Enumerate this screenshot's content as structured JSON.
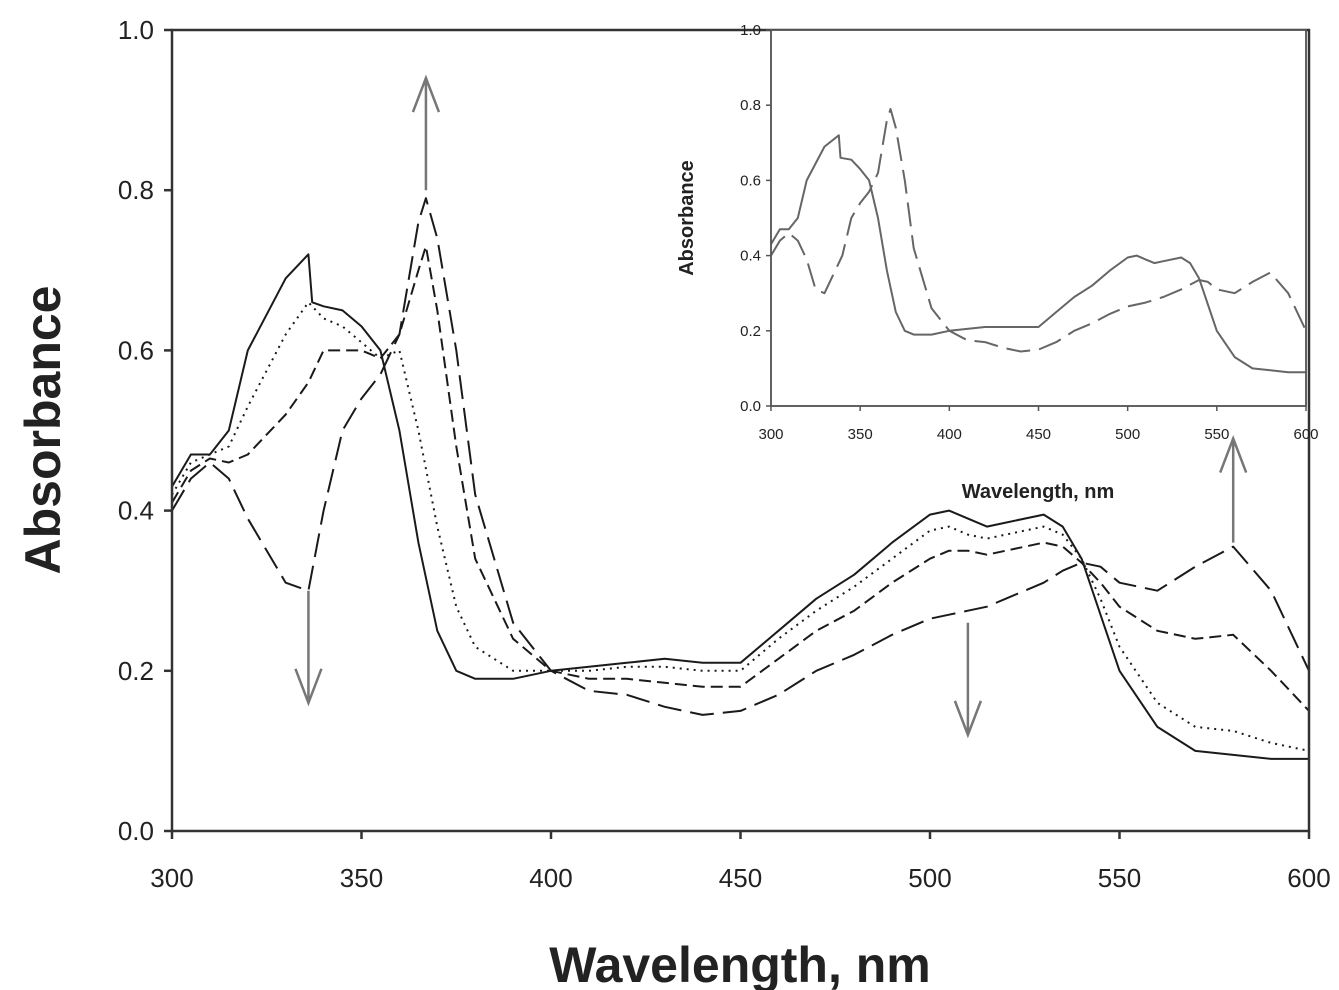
{
  "chart_data": [
    {
      "type": "line",
      "title": "",
      "xlabel": "Wavelength, nm",
      "ylabel": "Absorbance",
      "xlim": [
        300,
        600
      ],
      "ylim": [
        0.0,
        1.0
      ],
      "xticks": [
        "300",
        "350",
        "400",
        "450",
        "500",
        "550",
        "600"
      ],
      "yticks": [
        "0.0",
        "0.2",
        "0.4",
        "0.6",
        "0.8",
        "1.0"
      ],
      "grid": false,
      "legend": "none",
      "annotations": [
        {
          "type": "arrow",
          "direction": "up",
          "x": 367,
          "y_from": 0.8,
          "y_to": 0.94
        },
        {
          "type": "arrow",
          "direction": "down",
          "x": 336,
          "y_from": 0.3,
          "y_to": 0.16
        },
        {
          "type": "arrow",
          "direction": "down",
          "x": 510,
          "y_from": 0.26,
          "y_to": 0.12
        },
        {
          "type": "arrow",
          "direction": "up",
          "x": 580,
          "y_from": 0.36,
          "y_to": 0.49
        }
      ],
      "series": [
        {
          "style": "solid",
          "points": [
            [
              300,
              0.43
            ],
            [
              305,
              0.47
            ],
            [
              310,
              0.47
            ],
            [
              315,
              0.5
            ],
            [
              320,
              0.6
            ],
            [
              330,
              0.69
            ],
            [
              336,
              0.72
            ],
            [
              337,
              0.66
            ],
            [
              340,
              0.655
            ],
            [
              345,
              0.65
            ],
            [
              350,
              0.63
            ],
            [
              355,
              0.6
            ],
            [
              360,
              0.5
            ],
            [
              365,
              0.36
            ],
            [
              370,
              0.25
            ],
            [
              375,
              0.2
            ],
            [
              380,
              0.19
            ],
            [
              390,
              0.19
            ],
            [
              400,
              0.2
            ],
            [
              410,
              0.205
            ],
            [
              420,
              0.21
            ],
            [
              430,
              0.215
            ],
            [
              440,
              0.21
            ],
            [
              450,
              0.21
            ],
            [
              460,
              0.25
            ],
            [
              470,
              0.29
            ],
            [
              480,
              0.32
            ],
            [
              490,
              0.36
            ],
            [
              500,
              0.395
            ],
            [
              505,
              0.4
            ],
            [
              510,
              0.39
            ],
            [
              515,
              0.38
            ],
            [
              520,
              0.385
            ],
            [
              530,
              0.395
            ],
            [
              535,
              0.38
            ],
            [
              540,
              0.34
            ],
            [
              545,
              0.27
            ],
            [
              550,
              0.2
            ],
            [
              560,
              0.13
            ],
            [
              570,
              0.1
            ],
            [
              580,
              0.095
            ],
            [
              590,
              0.09
            ],
            [
              600,
              0.09
            ]
          ]
        },
        {
          "style": "dotted",
          "points": [
            [
              300,
              0.42
            ],
            [
              305,
              0.46
            ],
            [
              310,
              0.47
            ],
            [
              315,
              0.48
            ],
            [
              320,
              0.53
            ],
            [
              330,
              0.62
            ],
            [
              336,
              0.66
            ],
            [
              340,
              0.64
            ],
            [
              345,
              0.63
            ],
            [
              350,
              0.61
            ],
            [
              355,
              0.59
            ],
            [
              360,
              0.6
            ],
            [
              365,
              0.5
            ],
            [
              370,
              0.38
            ],
            [
              375,
              0.28
            ],
            [
              380,
              0.23
            ],
            [
              390,
              0.2
            ],
            [
              400,
              0.2
            ],
            [
              410,
              0.2
            ],
            [
              420,
              0.205
            ],
            [
              430,
              0.205
            ],
            [
              440,
              0.2
            ],
            [
              450,
              0.2
            ],
            [
              460,
              0.24
            ],
            [
              470,
              0.275
            ],
            [
              480,
              0.305
            ],
            [
              490,
              0.34
            ],
            [
              500,
              0.375
            ],
            [
              505,
              0.38
            ],
            [
              510,
              0.37
            ],
            [
              515,
              0.365
            ],
            [
              520,
              0.37
            ],
            [
              530,
              0.38
            ],
            [
              535,
              0.37
            ],
            [
              540,
              0.34
            ],
            [
              545,
              0.29
            ],
            [
              550,
              0.23
            ],
            [
              560,
              0.16
            ],
            [
              570,
              0.13
            ],
            [
              580,
              0.125
            ],
            [
              590,
              0.11
            ],
            [
              600,
              0.1
            ]
          ]
        },
        {
          "style": "dashed",
          "points": [
            [
              300,
              0.41
            ],
            [
              305,
              0.45
            ],
            [
              310,
              0.465
            ],
            [
              315,
              0.46
            ],
            [
              320,
              0.47
            ],
            [
              330,
              0.52
            ],
            [
              336,
              0.56
            ],
            [
              340,
              0.6
            ],
            [
              345,
              0.6
            ],
            [
              350,
              0.6
            ],
            [
              355,
              0.59
            ],
            [
              360,
              0.62
            ],
            [
              365,
              0.7
            ],
            [
              367,
              0.73
            ],
            [
              370,
              0.65
            ],
            [
              375,
              0.48
            ],
            [
              380,
              0.34
            ],
            [
              390,
              0.24
            ],
            [
              400,
              0.2
            ],
            [
              410,
              0.19
            ],
            [
              420,
              0.19
            ],
            [
              430,
              0.185
            ],
            [
              440,
              0.18
            ],
            [
              450,
              0.18
            ],
            [
              460,
              0.215
            ],
            [
              470,
              0.25
            ],
            [
              480,
              0.275
            ],
            [
              490,
              0.31
            ],
            [
              500,
              0.34
            ],
            [
              505,
              0.35
            ],
            [
              510,
              0.35
            ],
            [
              515,
              0.345
            ],
            [
              520,
              0.35
            ],
            [
              530,
              0.36
            ],
            [
              535,
              0.355
            ],
            [
              540,
              0.335
            ],
            [
              545,
              0.31
            ],
            [
              550,
              0.28
            ],
            [
              560,
              0.25
            ],
            [
              570,
              0.24
            ],
            [
              580,
              0.245
            ],
            [
              590,
              0.2
            ],
            [
              600,
              0.15
            ]
          ]
        },
        {
          "style": "long-dashed",
          "points": [
            [
              300,
              0.4
            ],
            [
              305,
              0.44
            ],
            [
              310,
              0.46
            ],
            [
              315,
              0.44
            ],
            [
              320,
              0.39
            ],
            [
              330,
              0.31
            ],
            [
              336,
              0.3
            ],
            [
              340,
              0.4
            ],
            [
              345,
              0.5
            ],
            [
              350,
              0.54
            ],
            [
              355,
              0.57
            ],
            [
              360,
              0.62
            ],
            [
              365,
              0.76
            ],
            [
              367,
              0.79
            ],
            [
              370,
              0.74
            ],
            [
              375,
              0.6
            ],
            [
              380,
              0.42
            ],
            [
              390,
              0.26
            ],
            [
              400,
              0.2
            ],
            [
              410,
              0.175
            ],
            [
              420,
              0.17
            ],
            [
              430,
              0.155
            ],
            [
              440,
              0.145
            ],
            [
              450,
              0.15
            ],
            [
              460,
              0.17
            ],
            [
              470,
              0.2
            ],
            [
              480,
              0.22
            ],
            [
              490,
              0.245
            ],
            [
              500,
              0.265
            ],
            [
              505,
              0.27
            ],
            [
              510,
              0.275
            ],
            [
              515,
              0.28
            ],
            [
              520,
              0.29
            ],
            [
              530,
              0.31
            ],
            [
              535,
              0.325
            ],
            [
              540,
              0.335
            ],
            [
              545,
              0.33
            ],
            [
              550,
              0.31
            ],
            [
              560,
              0.3
            ],
            [
              570,
              0.33
            ],
            [
              580,
              0.355
            ],
            [
              590,
              0.3
            ],
            [
              600,
              0.2
            ]
          ]
        }
      ]
    },
    {
      "type": "line",
      "title": "",
      "xlabel": "Wavelength, nm",
      "ylabel": "Absorbance",
      "xlim": [
        300,
        600
      ],
      "ylim": [
        0.0,
        1.0
      ],
      "xticks": [
        "300",
        "350",
        "400",
        "450",
        "500",
        "550",
        "600"
      ],
      "yticks": [
        "0.0",
        "0.2",
        "0.4",
        "0.6",
        "0.8",
        "1.0"
      ],
      "grid": false,
      "legend": "none",
      "placement": "inset top-right",
      "series": [
        {
          "style": "solid",
          "points": [
            [
              300,
              0.43
            ],
            [
              305,
              0.47
            ],
            [
              310,
              0.47
            ],
            [
              315,
              0.5
            ],
            [
              320,
              0.6
            ],
            [
              330,
              0.69
            ],
            [
              338,
              0.72
            ],
            [
              339,
              0.66
            ],
            [
              345,
              0.655
            ],
            [
              350,
              0.63
            ],
            [
              355,
              0.6
            ],
            [
              360,
              0.5
            ],
            [
              365,
              0.36
            ],
            [
              370,
              0.25
            ],
            [
              375,
              0.2
            ],
            [
              380,
              0.19
            ],
            [
              390,
              0.19
            ],
            [
              400,
              0.2
            ],
            [
              420,
              0.21
            ],
            [
              440,
              0.21
            ],
            [
              450,
              0.21
            ],
            [
              460,
              0.25
            ],
            [
              470,
              0.29
            ],
            [
              480,
              0.32
            ],
            [
              490,
              0.36
            ],
            [
              500,
              0.395
            ],
            [
              505,
              0.4
            ],
            [
              510,
              0.39
            ],
            [
              515,
              0.38
            ],
            [
              520,
              0.385
            ],
            [
              530,
              0.395
            ],
            [
              535,
              0.38
            ],
            [
              540,
              0.34
            ],
            [
              545,
              0.27
            ],
            [
              550,
              0.2
            ],
            [
              560,
              0.13
            ],
            [
              570,
              0.1
            ],
            [
              580,
              0.095
            ],
            [
              590,
              0.09
            ],
            [
              600,
              0.09
            ]
          ]
        },
        {
          "style": "long-dashed",
          "points": [
            [
              300,
              0.4
            ],
            [
              305,
              0.44
            ],
            [
              310,
              0.46
            ],
            [
              315,
              0.44
            ],
            [
              320,
              0.39
            ],
            [
              325,
              0.31
            ],
            [
              330,
              0.3
            ],
            [
              340,
              0.4
            ],
            [
              345,
              0.5
            ],
            [
              350,
              0.54
            ],
            [
              355,
              0.57
            ],
            [
              360,
              0.62
            ],
            [
              365,
              0.76
            ],
            [
              367,
              0.79
            ],
            [
              370,
              0.74
            ],
            [
              375,
              0.6
            ],
            [
              380,
              0.42
            ],
            [
              390,
              0.26
            ],
            [
              400,
              0.2
            ],
            [
              410,
              0.175
            ],
            [
              420,
              0.17
            ],
            [
              430,
              0.155
            ],
            [
              440,
              0.145
            ],
            [
              450,
              0.15
            ],
            [
              460,
              0.17
            ],
            [
              470,
              0.2
            ],
            [
              480,
              0.22
            ],
            [
              490,
              0.245
            ],
            [
              500,
              0.265
            ],
            [
              510,
              0.275
            ],
            [
              520,
              0.29
            ],
            [
              530,
              0.31
            ],
            [
              540,
              0.335
            ],
            [
              545,
              0.33
            ],
            [
              550,
              0.31
            ],
            [
              560,
              0.3
            ],
            [
              570,
              0.33
            ],
            [
              580,
              0.355
            ],
            [
              590,
              0.3
            ],
            [
              600,
              0.2
            ]
          ]
        }
      ]
    }
  ]
}
